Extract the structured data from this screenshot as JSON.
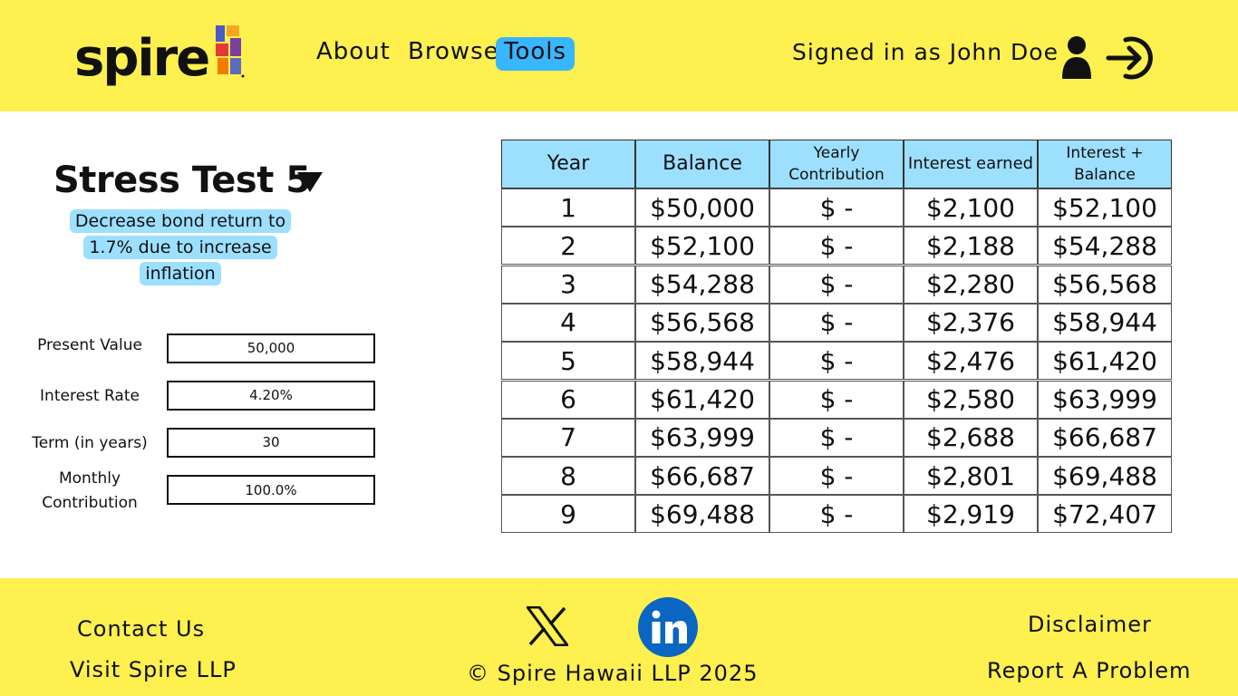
{
  "header": {
    "logo_text": "spire",
    "nav": {
      "about": "About",
      "browse": "Browse",
      "tools": "Tools"
    },
    "signed_in": "Signed in as John Doe",
    "user_icon": "user-icon",
    "signin_icon": "sign-in-icon"
  },
  "stress": {
    "title": "Stress Test 5",
    "dropdown_icon": "caret-down-icon",
    "note": "Decrease bond return to 1.7% due to increase inflation"
  },
  "form": {
    "present_value": {
      "label": "Present Value",
      "value": "50,000"
    },
    "interest_rate": {
      "label": "Interest Rate",
      "value": "4.20%"
    },
    "term": {
      "label": "Term (in years)",
      "value": "30"
    },
    "monthly": {
      "label": "Monthly Contribution",
      "value": "100.0%"
    }
  },
  "table": {
    "headers": {
      "year": "Year",
      "balance": "Balance",
      "contribution": "Yearly Contribution",
      "interest": "Interest earned",
      "total": "Interest + Balance"
    },
    "rows": [
      [
        "1",
        "$50,000",
        "$ -",
        "$2,100",
        "$52,100"
      ],
      [
        "2",
        "$52,100",
        "$ -",
        "$2,188",
        "$54,288"
      ],
      [
        "3",
        "$54,288",
        "$ -",
        "$2,280",
        "$56,568"
      ],
      [
        "4",
        "$56,568",
        "$ -",
        "$2,376",
        "$58,944"
      ],
      [
        "5",
        "$58,944",
        "$ -",
        "$2,476",
        "$61,420"
      ],
      [
        "6",
        "$61,420",
        "$ -",
        "$2,580",
        "$63,999"
      ],
      [
        "7",
        "$63,999",
        "$ -",
        "$2,688",
        "$66,687"
      ],
      [
        "8",
        "$66,687",
        "$ -",
        "$2,801",
        "$69,488"
      ],
      [
        "9",
        "$69,488",
        "$ -",
        "$2,919",
        "$72,407"
      ]
    ]
  },
  "footer": {
    "contact": "Contact Us",
    "visit": "Visit Spire LLP",
    "copyright": "© Spire Hawaii LLP 2025",
    "disclaimer": "Disclaimer",
    "report": "Report A Problem",
    "x_icon": "x-twitter-icon",
    "linkedin_icon": "linkedin-icon"
  },
  "colors": {
    "brand_yellow": "#fdf04f",
    "accent_blue": "#38b6ff",
    "header_cell_blue": "#9ddfff",
    "linkedin_blue": "#0a66c2"
  }
}
